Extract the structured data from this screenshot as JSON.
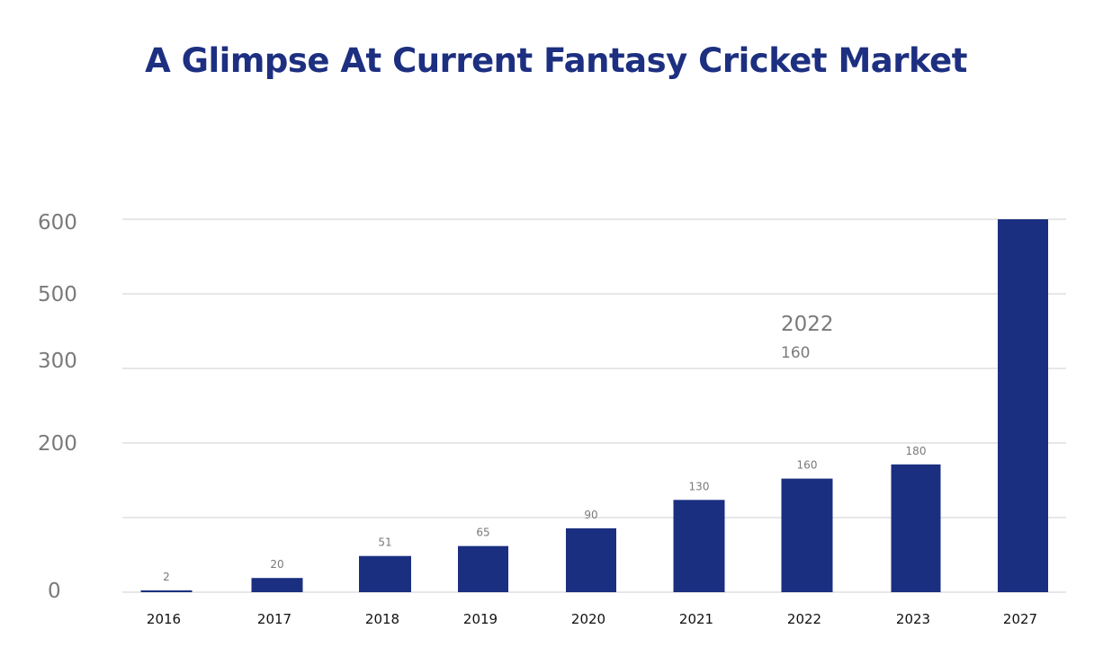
{
  "chart_data": {
    "type": "bar",
    "title": "A Glimpse At Current Fantasy Cricket Market",
    "categories": [
      "2016",
      "2017",
      "2018",
      "2019",
      "2020",
      "2021",
      "2022",
      "2023",
      "2027"
    ],
    "values": [
      2,
      20,
      51,
      65,
      90,
      130,
      160,
      180,
      600
    ],
    "data_labels": [
      "2",
      "20",
      "51",
      "65",
      "90",
      "130",
      "160",
      "180",
      ""
    ],
    "y_tick_labels": [
      "0",
      "",
      "200",
      "300",
      "500",
      "600"
    ],
    "xlabel": "",
    "ylabel": "",
    "grid": true,
    "bar_color": "#1b2f80",
    "annotation": {
      "year": "2022",
      "value": "160"
    }
  }
}
